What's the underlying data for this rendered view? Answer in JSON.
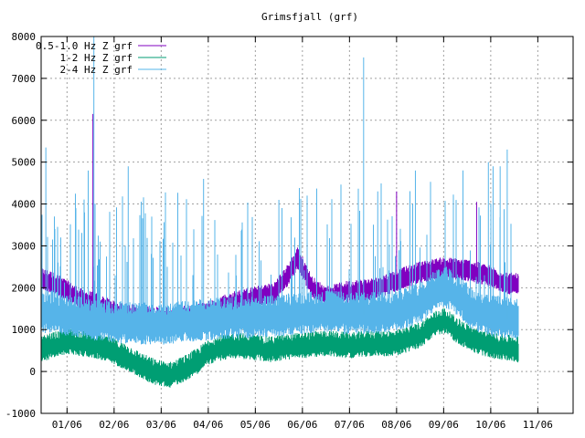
{
  "chart_data": {
    "type": "line",
    "title": "Grimsfjall (grf)",
    "xlabel": "",
    "ylabel": "",
    "ylim": [
      -1000,
      8000
    ],
    "yticks": [
      -1000,
      0,
      1000,
      2000,
      3000,
      4000,
      5000,
      6000,
      7000,
      8000
    ],
    "xlim": [
      -0.55,
      10.75
    ],
    "xticks": [
      {
        "label": "01/06",
        "pos": 0
      },
      {
        "label": "02/06",
        "pos": 1
      },
      {
        "label": "03/06",
        "pos": 2
      },
      {
        "label": "04/06",
        "pos": 3
      },
      {
        "label": "05/06",
        "pos": 4
      },
      {
        "label": "06/06",
        "pos": 5
      },
      {
        "label": "07/06",
        "pos": 6
      },
      {
        "label": "08/06",
        "pos": 7
      },
      {
        "label": "09/06",
        "pos": 8
      },
      {
        "label": "10/06",
        "pos": 9
      },
      {
        "label": "11/06",
        "pos": 10
      }
    ],
    "grid": true,
    "legend_position": "top-left",
    "series": [
      {
        "name": "0.5-1.0 Hz Z grf",
        "color": "#8000c0",
        "x": [
          -0.55,
          -0.3,
          0,
          0.3,
          0.6,
          1.0,
          1.5,
          2.0,
          2.5,
          3.0,
          3.3,
          3.6,
          4.0,
          4.4,
          4.7,
          4.9,
          5.2,
          5.5,
          6.0,
          6.5,
          7.0,
          7.5,
          8.0,
          8.5,
          9.0,
          9.3,
          9.6
        ],
        "y": [
          2200,
          2100,
          1900,
          1700,
          1600,
          1400,
          1300,
          1250,
          1300,
          1400,
          1550,
          1650,
          1750,
          1850,
          2300,
          2700,
          2000,
          1750,
          1900,
          1950,
          2150,
          2350,
          2450,
          2400,
          2250,
          2100,
          2050
        ]
      },
      {
        "name": "1-2 Hz Z grf",
        "color": "#009e73",
        "x": [
          -0.55,
          -0.3,
          0,
          0.3,
          0.6,
          1.0,
          1.3,
          1.6,
          1.9,
          2.2,
          2.5,
          2.8,
          3.0,
          3.3,
          3.6,
          4.0,
          4.3,
          4.6,
          5.0,
          5.5,
          6.0,
          6.5,
          7.0,
          7.5,
          7.8,
          8.0,
          8.3,
          8.6,
          9.0,
          9.3,
          9.6
        ],
        "y": [
          500,
          600,
          700,
          650,
          600,
          450,
          300,
          100,
          -50,
          -100,
          50,
          250,
          450,
          550,
          600,
          550,
          500,
          550,
          600,
          650,
          600,
          650,
          650,
          850,
          1100,
          1200,
          950,
          750,
          600,
          550,
          500
        ]
      },
      {
        "name": "2-4 Hz Z grf",
        "color": "#56b4e9",
        "x": [
          -0.55,
          -0.3,
          0,
          0.3,
          0.6,
          1.0,
          1.5,
          2.0,
          2.5,
          3.0,
          3.5,
          4.0,
          4.5,
          5.0,
          5.5,
          6.0,
          6.5,
          7.0,
          7.5,
          7.8,
          8.0,
          8.3,
          8.6,
          9.0,
          9.3,
          9.6
        ],
        "y": [
          1350,
          1400,
          1300,
          1250,
          1200,
          1150,
          1100,
          1100,
          1150,
          1200,
          1250,
          1250,
          1300,
          1350,
          1400,
          1350,
          1350,
          1400,
          1600,
          1900,
          2000,
          1800,
          1450,
          1300,
          1250,
          1200
        ]
      }
    ],
    "spikes": [
      {
        "x": 0.55,
        "y": 6150,
        "series": 0
      },
      {
        "x": 0.57,
        "y": 8000,
        "series": 2
      },
      {
        "x": 6.3,
        "y": 7500,
        "series": 2
      },
      {
        "x": 7.0,
        "y": 4300,
        "series": 0
      },
      {
        "x": 8.7,
        "y": 4050,
        "series": 0
      },
      {
        "x": 9.35,
        "y": 5300,
        "series": 2
      },
      {
        "x": 8.95,
        "y": 5000,
        "series": 2
      },
      {
        "x": 9.05,
        "y": 4900,
        "series": 2
      },
      {
        "x": 9.2,
        "y": 4900,
        "series": 2
      },
      {
        "x": 7.4,
        "y": 4800,
        "series": 2
      },
      {
        "x": -0.45,
        "y": 5350,
        "series": 2
      },
      {
        "x": 0.45,
        "y": 4800,
        "series": 2
      },
      {
        "x": 1.3,
        "y": 4900,
        "series": 2
      },
      {
        "x": 2.9,
        "y": 4600,
        "series": 2
      },
      {
        "x": 5.1,
        "y": 4200,
        "series": 2
      },
      {
        "x": 6.6,
        "y": 4300,
        "series": 2
      },
      {
        "x": 4.5,
        "y": 4100,
        "series": 2
      }
    ]
  }
}
